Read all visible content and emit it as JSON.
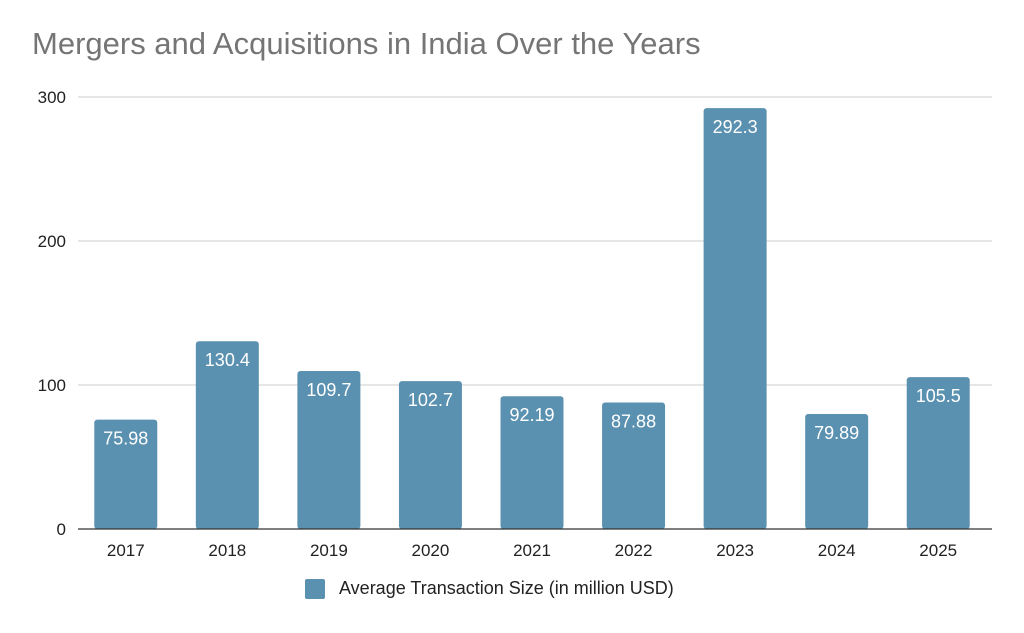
{
  "chart_data": {
    "type": "bar",
    "title": "Mergers and Acquisitions in India Over the Years",
    "categories": [
      "2017",
      "2018",
      "2019",
      "2020",
      "2021",
      "2022",
      "2023",
      "2024",
      "2025"
    ],
    "series": [
      {
        "name": "Average Transaction Size (in million USD)",
        "values": [
          75.98,
          130.4,
          109.7,
          102.7,
          92.19,
          87.88,
          292.3,
          79.89,
          105.5
        ],
        "labels": [
          "75.98",
          "130.4",
          "109.7",
          "102.7",
          "92.19",
          "87.88",
          "292.3",
          "79.89",
          "105.5"
        ]
      }
    ],
    "ylim": [
      0,
      300
    ],
    "yticks": [
      0,
      100,
      200,
      300
    ],
    "xlabel": "",
    "ylabel": "",
    "grid": true,
    "legend_position": "bottom",
    "colors": {
      "bar": "#5b91b0",
      "grid": "#cccccc",
      "axis": "#333333"
    }
  }
}
